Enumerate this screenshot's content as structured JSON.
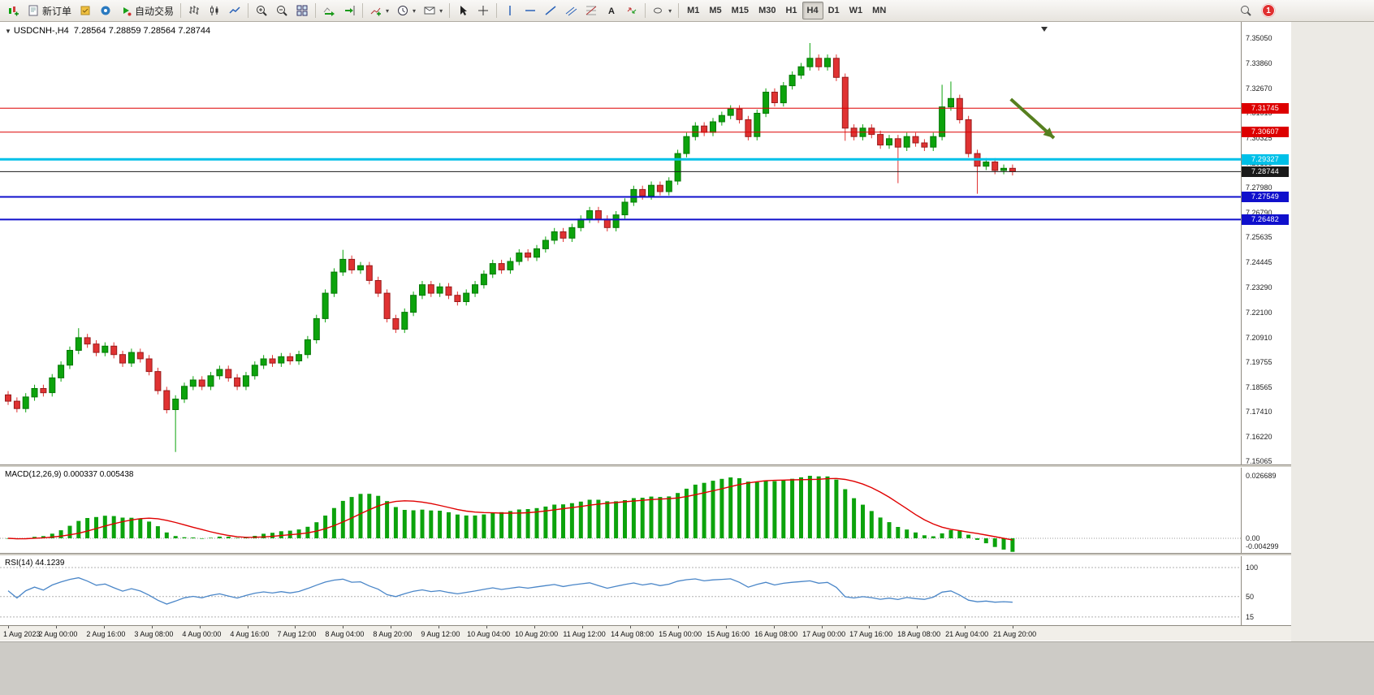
{
  "toolbar": {
    "new_order_label": "新订单",
    "auto_trading_label": "自动交易",
    "timeframes": [
      "M1",
      "M5",
      "M15",
      "M30",
      "H1",
      "H4",
      "D1",
      "W1",
      "MN"
    ],
    "active_timeframe": "H4",
    "notification_count": "1"
  },
  "chart": {
    "symbol_period": "USDCNH-,H4",
    "ohlc": "7.28564 7.28859 7.28564 7.28744",
    "price_axis_labels": [
      "7.35050",
      "7.33860",
      "7.32670",
      "7.31515",
      "7.30325",
      "7.29135",
      "7.27980",
      "7.26790",
      "7.25635",
      "7.24445",
      "7.23290",
      "7.22100",
      "7.20910",
      "7.19755",
      "7.18565",
      "7.17410",
      "7.16220",
      "7.15065"
    ],
    "time_axis_labels": [
      "1 Aug 2023",
      "2 Aug 00:00",
      "2 Aug 16:00",
      "3 Aug 08:00",
      "4 Aug 00:00",
      "4 Aug 16:00",
      "7 Aug 12:00",
      "8 Aug 04:00",
      "8 Aug 20:00",
      "9 Aug 12:00",
      "10 Aug 04:00",
      "10 Aug 20:00",
      "11 Aug 12:00",
      "14 Aug 08:00",
      "15 Aug 00:00",
      "15 Aug 16:00",
      "16 Aug 08:00",
      "17 Aug 00:00",
      "17 Aug 16:00",
      "18 Aug 08:00",
      "21 Aug 04:00",
      "21 Aug 20:00"
    ]
  },
  "macd_panel": {
    "label": "MACD(12,26,9)",
    "value_main": "0.000337",
    "value_signal": "0.005438",
    "axis_labels": [
      "0.026689",
      "0.00",
      "-0.004299"
    ]
  },
  "rsi_panel": {
    "label": "RSI(14)",
    "value": "44.1239",
    "axis_labels": [
      "100",
      "50",
      "15"
    ]
  },
  "chart_data": {
    "type": "candlestick",
    "symbol": "USDCNH-",
    "timeframe": "H4",
    "up_color": "#0ca30c",
    "down_color": "#e03232",
    "open_first": 7.182,
    "wick_default": 0.0018,
    "closes": [
      7.179,
      7.1755,
      7.181,
      7.185,
      7.183,
      7.19,
      7.196,
      7.203,
      7.209,
      7.206,
      7.202,
      7.205,
      7.201,
      7.197,
      7.202,
      7.199,
      7.193,
      7.184,
      7.175,
      7.18,
      7.186,
      7.189,
      7.186,
      7.191,
      7.194,
      7.19,
      7.186,
      7.191,
      7.196,
      7.199,
      7.197,
      7.2,
      7.198,
      7.201,
      7.208,
      7.218,
      7.23,
      7.24,
      7.246,
      7.241,
      7.243,
      7.236,
      7.23,
      7.218,
      7.213,
      7.221,
      7.229,
      7.234,
      7.23,
      7.233,
      7.229,
      7.226,
      7.23,
      7.234,
      7.239,
      7.244,
      7.241,
      7.245,
      7.249,
      7.247,
      7.251,
      7.255,
      7.259,
      7.256,
      7.261,
      7.265,
      7.269,
      7.265,
      7.261,
      7.267,
      7.273,
      7.279,
      7.276,
      7.281,
      7.278,
      7.283,
      7.296,
      7.304,
      7.309,
      7.306,
      7.311,
      7.314,
      7.317,
      7.312,
      7.304,
      7.315,
      7.325,
      7.32,
      7.328,
      7.333,
      7.337,
      7.341,
      7.337,
      7.341,
      7.332,
      7.308,
      7.304,
      7.308,
      7.305,
      7.3,
      7.303,
      7.299,
      7.304,
      7.301,
      7.299,
      7.304,
      7.318,
      7.322,
      7.312,
      7.296,
      7.29,
      7.292,
      7.288,
      7.289,
      7.28744
    ],
    "wick_overrides": {
      "8": {
        "h": 7.2135
      },
      "19": {
        "l": 7.155
      },
      "38": {
        "h": 7.2505
      },
      "91": {
        "h": 7.3482
      },
      "95": {
        "l": 7.302
      },
      "101": {
        "l": 7.282
      },
      "106": {
        "h": 7.3285
      },
      "107": {
        "h": 7.33
      },
      "110": {
        "l": 7.277
      }
    },
    "levels": [
      {
        "price": 7.31745,
        "label": "7.31745",
        "color": "#dd0000",
        "width": 1,
        "text_color": "#ffffff"
      },
      {
        "price": 7.30607,
        "label": "7.30607",
        "color": "#dd0000",
        "width": 1,
        "text_color": "#ffffff"
      },
      {
        "price": 7.29327,
        "label": "7.29327",
        "color": "#00c0e8",
        "width": 3,
        "text_color": "#ffffff"
      },
      {
        "price": 7.28744,
        "label": "7.28744",
        "color": "#1a1a1a",
        "width": 1,
        "text_color": "#ffffff",
        "current": true
      },
      {
        "price": 7.27549,
        "label": "7.27549",
        "color": "#1010cc",
        "width": 2,
        "text_color": "#ffffff"
      },
      {
        "price": 7.26482,
        "label": "7.26482",
        "color": "#1010cc",
        "width": 2,
        "text_color": "#ffffff"
      }
    ],
    "current_price": 7.28744,
    "macd": {
      "fast": 12,
      "slow": 26,
      "signal": 9,
      "histogram_color": "#0ca30c",
      "signal_color": "#e00000"
    },
    "rsi": {
      "period": 14,
      "color": "#4a86c8",
      "levels": [
        100,
        50,
        15
      ]
    },
    "annotation_arrow": {
      "from_index": 113.8,
      "from_price": 7.3217,
      "to_index": 118.7,
      "to_price": 7.3033,
      "color": "#567f1f"
    }
  }
}
